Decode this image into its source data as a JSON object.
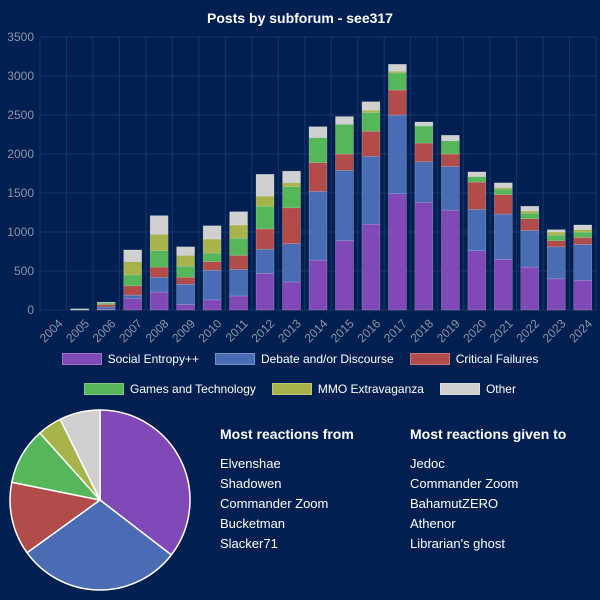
{
  "chart_data": [
    {
      "type": "bar",
      "stacked": true,
      "title": "Posts by subforum - see317",
      "categories": [
        "2004",
        "2005",
        "2006",
        "2007",
        "2008",
        "2009",
        "2010",
        "2011",
        "2012",
        "2013",
        "2014",
        "2015",
        "2016",
        "2017",
        "2018",
        "2019",
        "2020",
        "2021",
        "2022",
        "2023",
        "2024"
      ],
      "ylim": [
        0,
        3500
      ],
      "yticks": [
        0,
        500,
        1000,
        1500,
        2000,
        2500,
        3000,
        3500
      ],
      "grid": true,
      "legend_position": "bottom",
      "series": [
        {
          "name": "Social Entropy++",
          "color": "#8049b7",
          "values": [
            0,
            0,
            10,
            150,
            230,
            70,
            130,
            180,
            470,
            360,
            640,
            890,
            1100,
            1490,
            1380,
            1280,
            760,
            650,
            550,
            400,
            380
          ]
        },
        {
          "name": "Debate and/or Discourse",
          "color": "#4a6cb5",
          "values": [
            0,
            5,
            30,
            40,
            190,
            260,
            380,
            340,
            310,
            490,
            880,
            900,
            870,
            1010,
            520,
            560,
            530,
            580,
            470,
            410,
            460
          ]
        },
        {
          "name": "Critical Failures",
          "color": "#b24c4a",
          "values": [
            0,
            2,
            30,
            120,
            130,
            90,
            110,
            180,
            260,
            460,
            370,
            210,
            320,
            320,
            240,
            160,
            350,
            250,
            150,
            80,
            90
          ]
        },
        {
          "name": "Games and Technology",
          "color": "#55b65a",
          "values": [
            0,
            3,
            20,
            140,
            210,
            140,
            110,
            220,
            290,
            270,
            320,
            380,
            240,
            220,
            220,
            170,
            70,
            70,
            70,
            70,
            70
          ]
        },
        {
          "name": "MMO Extravaganza",
          "color": "#a8b34c",
          "values": [
            0,
            0,
            0,
            170,
            210,
            140,
            180,
            170,
            130,
            50,
            0,
            0,
            30,
            20,
            0,
            0,
            0,
            20,
            30,
            40,
            30
          ]
        },
        {
          "name": "Other",
          "color": "#d0d0d0",
          "values": [
            0,
            5,
            10,
            150,
            240,
            110,
            170,
            170,
            280,
            150,
            140,
            100,
            110,
            90,
            50,
            70,
            60,
            60,
            60,
            30,
            60
          ]
        }
      ]
    },
    {
      "type": "pie",
      "slices": [
        {
          "label": "Social Entropy++",
          "value": 36.5,
          "color": "#8049b7"
        },
        {
          "label": "Debate and/or Discourse",
          "value": 30.5,
          "color": "#4a6cb5"
        },
        {
          "label": "Critical Failures",
          "value": 13.5,
          "color": "#b24c4a"
        },
        {
          "label": "Games and Technology",
          "value": 10.5,
          "color": "#55b65a"
        },
        {
          "label": "MMO Extravaganza",
          "value": 4.5,
          "color": "#a8b34c"
        },
        {
          "label": "Other",
          "value": 7.5,
          "color": "#d0d0d0"
        }
      ]
    }
  ],
  "reactions_from": {
    "title": "Most reactions from",
    "users": [
      "Elvenshae",
      "Shadowen",
      "Commander Zoom",
      "Bucketman",
      "Slacker71"
    ]
  },
  "reactions_to": {
    "title": "Most reactions given to",
    "users": [
      "Jedoc",
      "Commander Zoom",
      "BahamutZERO",
      "Athenor",
      "Librarian's ghost"
    ]
  },
  "colors": {
    "background": "#012051",
    "grid": "#1a3566",
    "axis_text": "#8c95a8"
  }
}
